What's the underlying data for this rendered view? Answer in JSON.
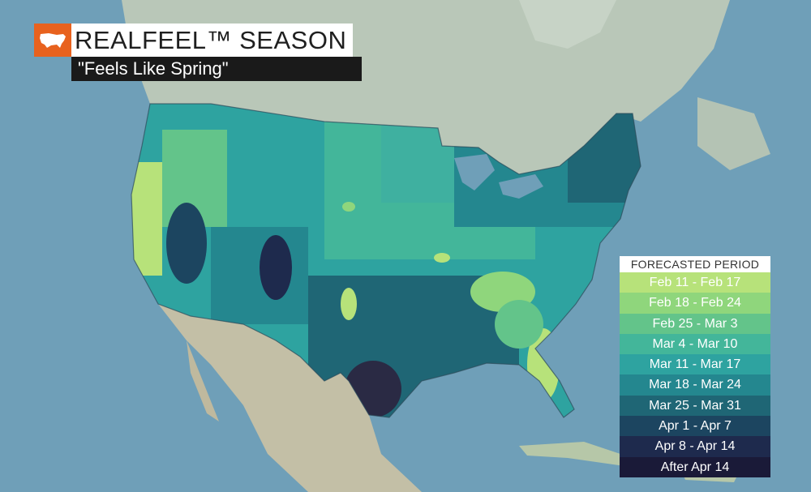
{
  "header": {
    "title": "REALFEEL™ SEASON",
    "subtitle": "\"Feels Like Spring\"",
    "icon": "usa-map-icon",
    "accent_color": "#e8621e"
  },
  "legend": {
    "title": "FORECASTED PERIOD",
    "items": [
      {
        "label": "Feb 11 - Feb 17",
        "color": "#b7e27a",
        "text_color": "#ffffff"
      },
      {
        "label": "Feb 18 - Feb 24",
        "color": "#8fd67c",
        "text_color": "#ffffff"
      },
      {
        "label": "Feb 25 - Mar 3",
        "color": "#63c48a",
        "text_color": "#ffffff"
      },
      {
        "label": "Mar 4 - Mar 10",
        "color": "#43b69a",
        "text_color": "#ffffff"
      },
      {
        "label": "Mar 11 - Mar 17",
        "color": "#2ea3a0",
        "text_color": "#ffffff"
      },
      {
        "label": "Mar 18 - Mar 24",
        "color": "#24878f",
        "text_color": "#ffffff"
      },
      {
        "label": "Mar 25 - Mar 31",
        "color": "#1f6675",
        "text_color": "#ffffff"
      },
      {
        "label": "Apr 1 - Apr 7",
        "color": "#1c4560",
        "text_color": "#ffffff"
      },
      {
        "label": "Apr 8 - Apr 14",
        "color": "#1e2a4d",
        "text_color": "#ffffff"
      },
      {
        "label": "After Apr 14",
        "color": "#1a1a38",
        "text_color": "#ffffff"
      }
    ]
  }
}
